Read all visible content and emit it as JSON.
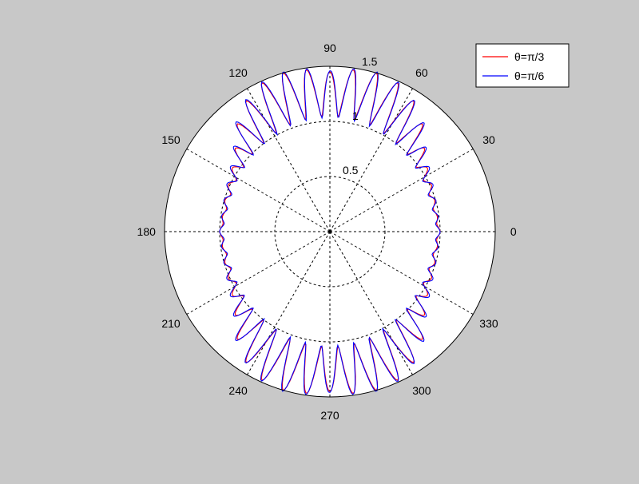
{
  "figure": {
    "background": "#c8c8c8"
  },
  "chart_data": {
    "type": "line",
    "coordinate_system": "polar",
    "title": "",
    "angle_unit": "degrees",
    "angle_ticks": [
      0,
      30,
      60,
      90,
      120,
      150,
      180,
      210,
      240,
      270,
      300,
      330
    ],
    "angle_tick_labels": [
      "0",
      "30",
      "60",
      "90",
      "120",
      "150",
      "180",
      "210",
      "240",
      "270",
      "300",
      "330"
    ],
    "r_ticks": [
      0.5,
      1,
      1.5
    ],
    "r_tick_labels": [
      "0.5",
      "1",
      "1.5"
    ],
    "rlim": [
      0,
      1.5
    ],
    "grid": true,
    "legend": {
      "placement": "top-right",
      "entries": [
        "θ=π/3",
        "θ=π/6"
      ]
    },
    "series": [
      {
        "name": "θ=π/3",
        "color": "#ff0000",
        "angle_deg": [
          0,
          10,
          20,
          30,
          40,
          45,
          50,
          55,
          60,
          65,
          70,
          75,
          80,
          85,
          90,
          95,
          100,
          105,
          110,
          115,
          120,
          125,
          130,
          135,
          140,
          150,
          160,
          170,
          180,
          190,
          200,
          210,
          220,
          225,
          230,
          235,
          240,
          245,
          250,
          255,
          260,
          265,
          270,
          275,
          280,
          285,
          290,
          295,
          300,
          305,
          310,
          315,
          320,
          330,
          340,
          350,
          360
        ],
        "r": [
          1.0,
          0.98,
          1.0,
          1.03,
          1.12,
          1.22,
          1.3,
          1.38,
          1.44,
          1.48,
          1.5,
          1.5,
          1.49,
          1.47,
          1.45,
          1.47,
          1.49,
          1.5,
          1.5,
          1.48,
          1.44,
          1.38,
          1.3,
          1.22,
          1.12,
          1.03,
          1.0,
          0.98,
          1.0,
          0.98,
          1.0,
          1.03,
          1.12,
          1.22,
          1.3,
          1.38,
          1.44,
          1.48,
          1.5,
          1.5,
          1.49,
          1.47,
          1.45,
          1.47,
          1.49,
          1.5,
          1.5,
          1.48,
          1.44,
          1.38,
          1.3,
          1.22,
          1.12,
          1.03,
          1.0,
          0.98,
          1.0
        ],
        "oscillation_floor_r": [
          0.98,
          0.96,
          0.96,
          0.97,
          0.98,
          0.99,
          1.0,
          1.0,
          1.01,
          1.02,
          1.03,
          1.03,
          1.04,
          1.04,
          1.05,
          1.04,
          1.04,
          1.03,
          1.03,
          1.02,
          1.01,
          1.0,
          1.0,
          0.99,
          0.98,
          0.97,
          0.96,
          0.96,
          0.98,
          0.96,
          0.96,
          0.97,
          0.98,
          0.99,
          1.0,
          1.0,
          1.01,
          1.02,
          1.03,
          1.03,
          1.04,
          1.04,
          1.05,
          1.04,
          1.04,
          1.03,
          1.03,
          1.02,
          1.01,
          1.0,
          1.0,
          0.99,
          0.98,
          0.97,
          0.96,
          0.96,
          0.98
        ]
      },
      {
        "name": "θ=π/6",
        "color": "#0000ff",
        "angle_deg": [
          0,
          10,
          20,
          30,
          40,
          45,
          50,
          55,
          60,
          65,
          70,
          75,
          80,
          85,
          90,
          95,
          100,
          105,
          110,
          115,
          120,
          125,
          130,
          135,
          140,
          150,
          160,
          170,
          180,
          190,
          200,
          210,
          220,
          225,
          230,
          235,
          240,
          245,
          250,
          255,
          260,
          265,
          270,
          275,
          280,
          285,
          290,
          295,
          300,
          305,
          310,
          315,
          320,
          330,
          340,
          350,
          360
        ],
        "r": [
          1.0,
          0.99,
          1.01,
          1.05,
          1.14,
          1.24,
          1.32,
          1.39,
          1.45,
          1.49,
          1.51,
          1.51,
          1.5,
          1.48,
          1.46,
          1.48,
          1.5,
          1.51,
          1.51,
          1.49,
          1.45,
          1.39,
          1.32,
          1.24,
          1.14,
          1.05,
          1.01,
          0.99,
          1.0,
          0.99,
          1.01,
          1.05,
          1.14,
          1.24,
          1.32,
          1.39,
          1.45,
          1.49,
          1.51,
          1.51,
          1.5,
          1.48,
          1.46,
          1.48,
          1.5,
          1.51,
          1.51,
          1.49,
          1.45,
          1.39,
          1.32,
          1.24,
          1.14,
          1.05,
          1.01,
          0.99,
          1.0
        ],
        "oscillation_floor_r": [
          0.97,
          0.95,
          0.95,
          0.96,
          0.97,
          0.98,
          0.99,
          0.99,
          1.0,
          1.01,
          1.02,
          1.02,
          1.03,
          1.03,
          1.04,
          1.03,
          1.03,
          1.02,
          1.02,
          1.01,
          1.0,
          0.99,
          0.99,
          0.98,
          0.97,
          0.96,
          0.95,
          0.95,
          0.97,
          0.95,
          0.95,
          0.96,
          0.97,
          0.98,
          0.99,
          0.99,
          1.0,
          1.01,
          1.02,
          1.02,
          1.03,
          1.03,
          1.04,
          1.03,
          1.03,
          1.02,
          1.02,
          1.01,
          1.0,
          0.99,
          0.99,
          0.98,
          0.97,
          0.96,
          0.95,
          0.95,
          0.97
        ]
      }
    ]
  }
}
